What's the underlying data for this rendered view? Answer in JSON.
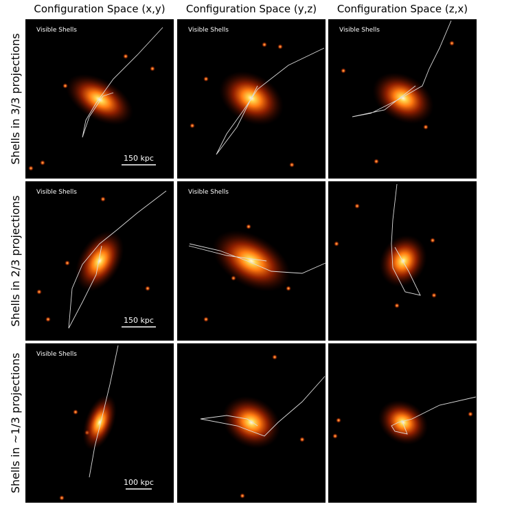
{
  "columns": [
    "Configuration Space (x,y)",
    "Configuration Space (y,z)",
    "Configuration Space (z,x)"
  ],
  "rows": [
    {
      "label": "Shells in 3/3 projections",
      "panels": [
        {
          "label": "Visible Shells",
          "scale_bar": "150 kpc"
        },
        {
          "label": "Visible Shells"
        },
        {
          "label": "Visible Shells"
        }
      ]
    },
    {
      "label": "Shells in 2/3 projections",
      "panels": [
        {
          "label": "Visible Shells",
          "scale_bar": "150 kpc"
        },
        {
          "label": "Visible Shells"
        },
        {}
      ]
    },
    {
      "label": "Shells in ~1/3 projections",
      "panels": [
        {
          "label": "Visible Shells",
          "scale_bar": "100 kpc"
        },
        {},
        {}
      ]
    }
  ]
}
